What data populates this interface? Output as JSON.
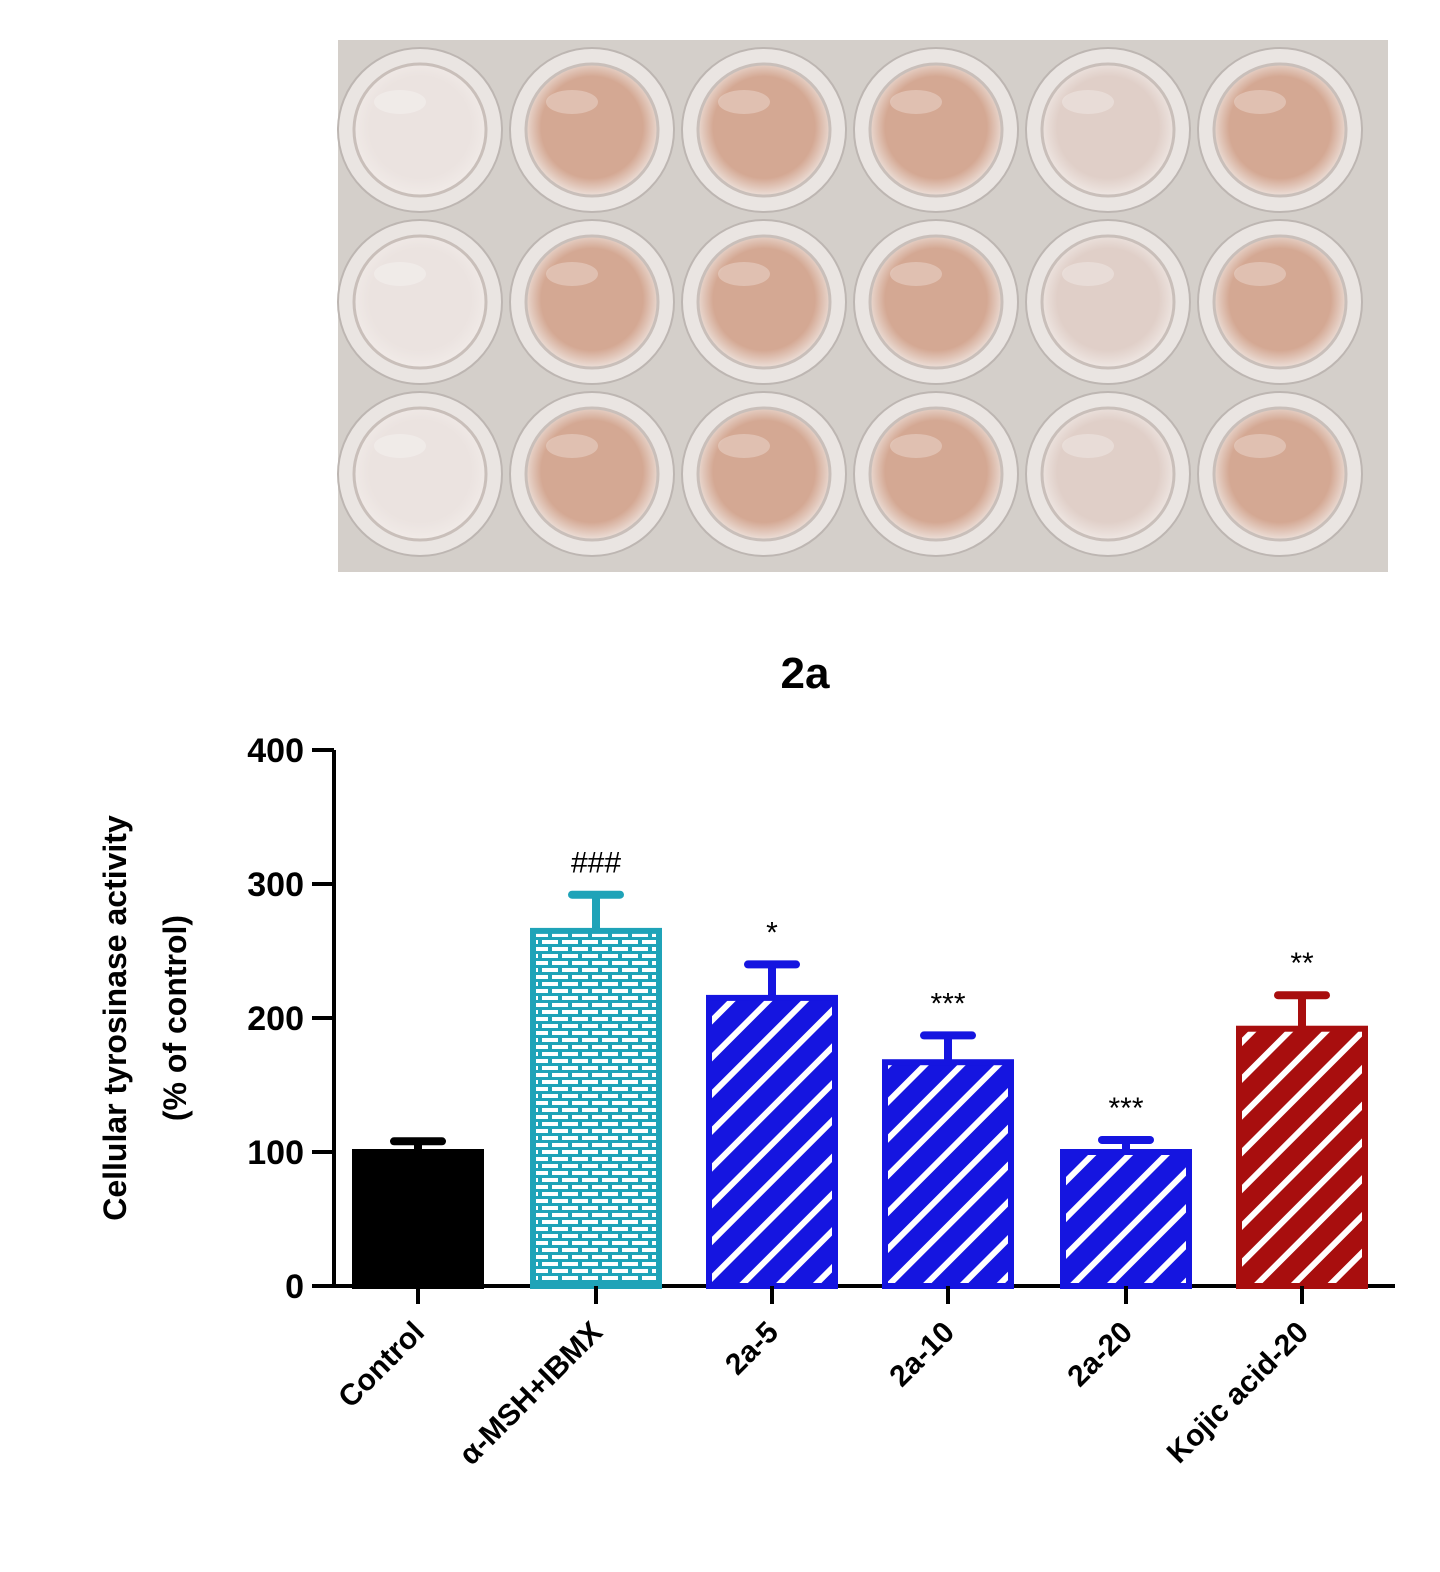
{
  "chart_data": {
    "type": "bar",
    "title": "2a",
    "ylabel": [
      "Cellular tyrosinase activity",
      "(% of control)"
    ],
    "xlabel": "",
    "ylim": [
      0,
      400
    ],
    "yticks": [
      0,
      100,
      200,
      300,
      400
    ],
    "grid": false,
    "categories": [
      "Control",
      "α-MSH+IBMX",
      "2a-5",
      "2a-10",
      "2a-20",
      "Kojic acid-20"
    ],
    "values": [
      100,
      265,
      215,
      167,
      100,
      192
    ],
    "errors": [
      8,
      27,
      25,
      20,
      9,
      25
    ],
    "significance": [
      "",
      "###",
      "*",
      "***",
      "***",
      "**"
    ],
    "colors": [
      "#000000",
      "#1fa3b8",
      "#1515e0",
      "#1515e0",
      "#1515e0",
      "#a80e0e"
    ],
    "patterns": [
      "solid",
      "brick",
      "diagonal",
      "diagonal",
      "diagonal",
      "diagonal"
    ]
  },
  "photo": {
    "subject": "well plate",
    "rows": 3,
    "cols": 6,
    "well_shades": [
      [
        "light",
        "pink",
        "pink",
        "pink",
        "pale",
        "pink"
      ],
      [
        "light",
        "pink",
        "pink",
        "pink",
        "pale",
        "pink"
      ],
      [
        "light",
        "pink",
        "pink",
        "pink",
        "pale",
        "pink"
      ]
    ],
    "colors": {
      "background": "#d4cfca",
      "light": "#ebe3e0",
      "pale": "#e0cfc8",
      "pink": "#d4a893"
    }
  }
}
